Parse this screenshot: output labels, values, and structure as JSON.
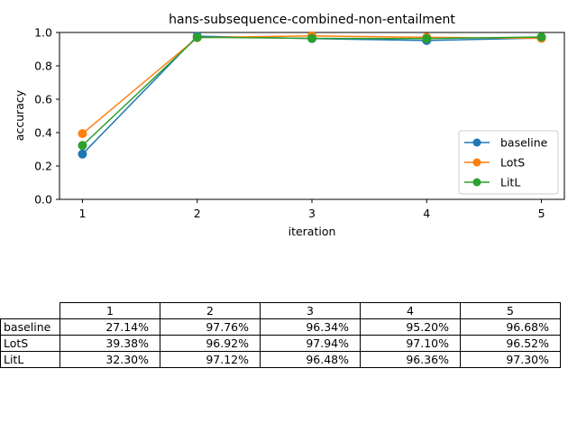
{
  "chart_data": {
    "type": "line",
    "title": "hans-subsequence-combined-non-entailment",
    "xlabel": "iteration",
    "ylabel": "accuracy",
    "x": [
      1,
      2,
      3,
      4,
      5
    ],
    "xticks": [
      "1",
      "2",
      "3",
      "4",
      "5"
    ],
    "yticks": [
      "0.0",
      "0.2",
      "0.4",
      "0.6",
      "0.8",
      "1.0"
    ],
    "xlim": [
      0.8,
      5.2
    ],
    "ylim": [
      0,
      1
    ],
    "grid": false,
    "legend_position": "lower-right",
    "series": [
      {
        "name": "baseline",
        "color": "#1f77b4",
        "values": [
          0.2714,
          0.9776,
          0.9634,
          0.952,
          0.9668
        ]
      },
      {
        "name": "LotS",
        "color": "#ff7f0e",
        "values": [
          0.3938,
          0.9692,
          0.9794,
          0.971,
          0.9652
        ]
      },
      {
        "name": "LitL",
        "color": "#2ca02c",
        "values": [
          0.323,
          0.9712,
          0.9648,
          0.9636,
          0.973
        ]
      }
    ]
  },
  "table": {
    "columns": [
      "1",
      "2",
      "3",
      "4",
      "5"
    ],
    "rows": [
      {
        "label": "baseline",
        "cells": [
          "27.14%",
          "97.76%",
          "96.34%",
          "95.20%",
          "96.68%"
        ]
      },
      {
        "label": "LotS",
        "cells": [
          "39.38%",
          "96.92%",
          "97.94%",
          "97.10%",
          "96.52%"
        ]
      },
      {
        "label": "LitL",
        "cells": [
          "32.30%",
          "97.12%",
          "96.48%",
          "96.36%",
          "97.30%"
        ]
      }
    ]
  }
}
